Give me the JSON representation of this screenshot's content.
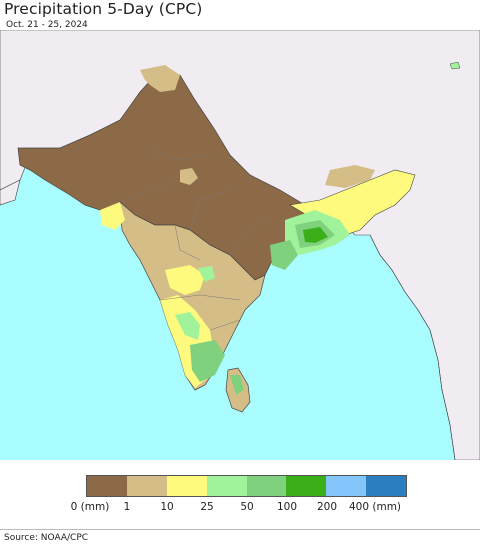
{
  "header": {
    "title": "Precipitation 5-Day (CPC)",
    "date_range": "Oct. 21 - 25, 2024"
  },
  "map": {
    "region": "South Asia",
    "colors": {
      "ocean": "#a9fdff",
      "outside_land": "#f1ecf2",
      "brown": "#8c6a47",
      "tan": "#d5bd88",
      "yellow": "#fdfa7d",
      "light_green": "#a0f39b",
      "green": "#7fd17e",
      "dark_green": "#3aaf1a",
      "boundary": "#444444",
      "state_boundary": "#777777"
    }
  },
  "legend": {
    "unit_label": "0 (mm)",
    "ticks": [
      "1",
      "10",
      "25",
      "50",
      "100",
      "200",
      "400 (mm)"
    ],
    "colors": [
      "#8c6a47",
      "#d5bd88",
      "#fdfa7d",
      "#a0f39b",
      "#7fd17e",
      "#3aaf1a",
      "#84c5fb",
      "#2b7ec0"
    ]
  },
  "footer": {
    "source": "Source: NOAA/CPC"
  }
}
